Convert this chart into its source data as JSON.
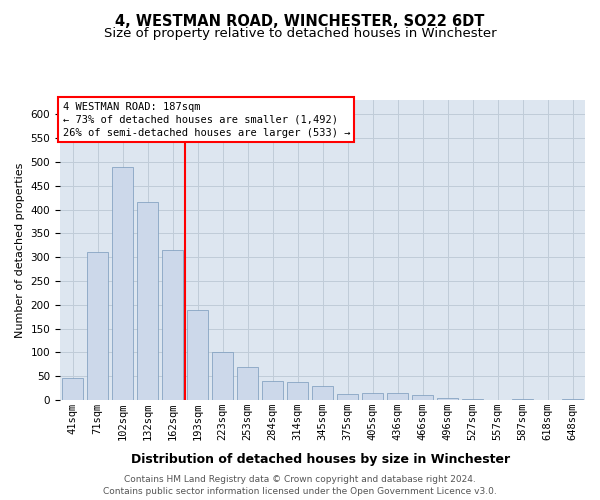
{
  "title": "4, WESTMAN ROAD, WINCHESTER, SO22 6DT",
  "subtitle": "Size of property relative to detached houses in Winchester",
  "xlabel": "Distribution of detached houses by size in Winchester",
  "ylabel": "Number of detached properties",
  "categories": [
    "41sqm",
    "71sqm",
    "102sqm",
    "132sqm",
    "162sqm",
    "193sqm",
    "223sqm",
    "253sqm",
    "284sqm",
    "314sqm",
    "345sqm",
    "375sqm",
    "405sqm",
    "436sqm",
    "466sqm",
    "496sqm",
    "527sqm",
    "557sqm",
    "587sqm",
    "618sqm",
    "648sqm"
  ],
  "values": [
    46,
    310,
    490,
    415,
    315,
    190,
    100,
    70,
    40,
    38,
    30,
    12,
    15,
    15,
    10,
    5,
    2,
    0,
    3,
    1,
    2
  ],
  "bar_color": "#ccd8ea",
  "bar_edge_color": "#7799bb",
  "grid_color": "#c0ccd8",
  "background_color": "#dde6f0",
  "red_line_color": "red",
  "annotation_text": "4 WESTMAN ROAD: 187sqm\n← 73% of detached houses are smaller (1,492)\n26% of semi-detached houses are larger (533) →",
  "annotation_box_color": "white",
  "annotation_box_edge": "red",
  "footer_line1": "Contains HM Land Registry data © Crown copyright and database right 2024.",
  "footer_line2": "Contains public sector information licensed under the Open Government Licence v3.0.",
  "ylim_max": 630,
  "yticks": [
    0,
    50,
    100,
    150,
    200,
    250,
    300,
    350,
    400,
    450,
    500,
    550,
    600
  ],
  "title_fontsize": 10.5,
  "subtitle_fontsize": 9.5,
  "xlabel_fontsize": 9,
  "ylabel_fontsize": 8,
  "tick_fontsize": 7.5,
  "annot_fontsize": 7.5,
  "footer_fontsize": 6.5,
  "red_line_x": 4.5
}
